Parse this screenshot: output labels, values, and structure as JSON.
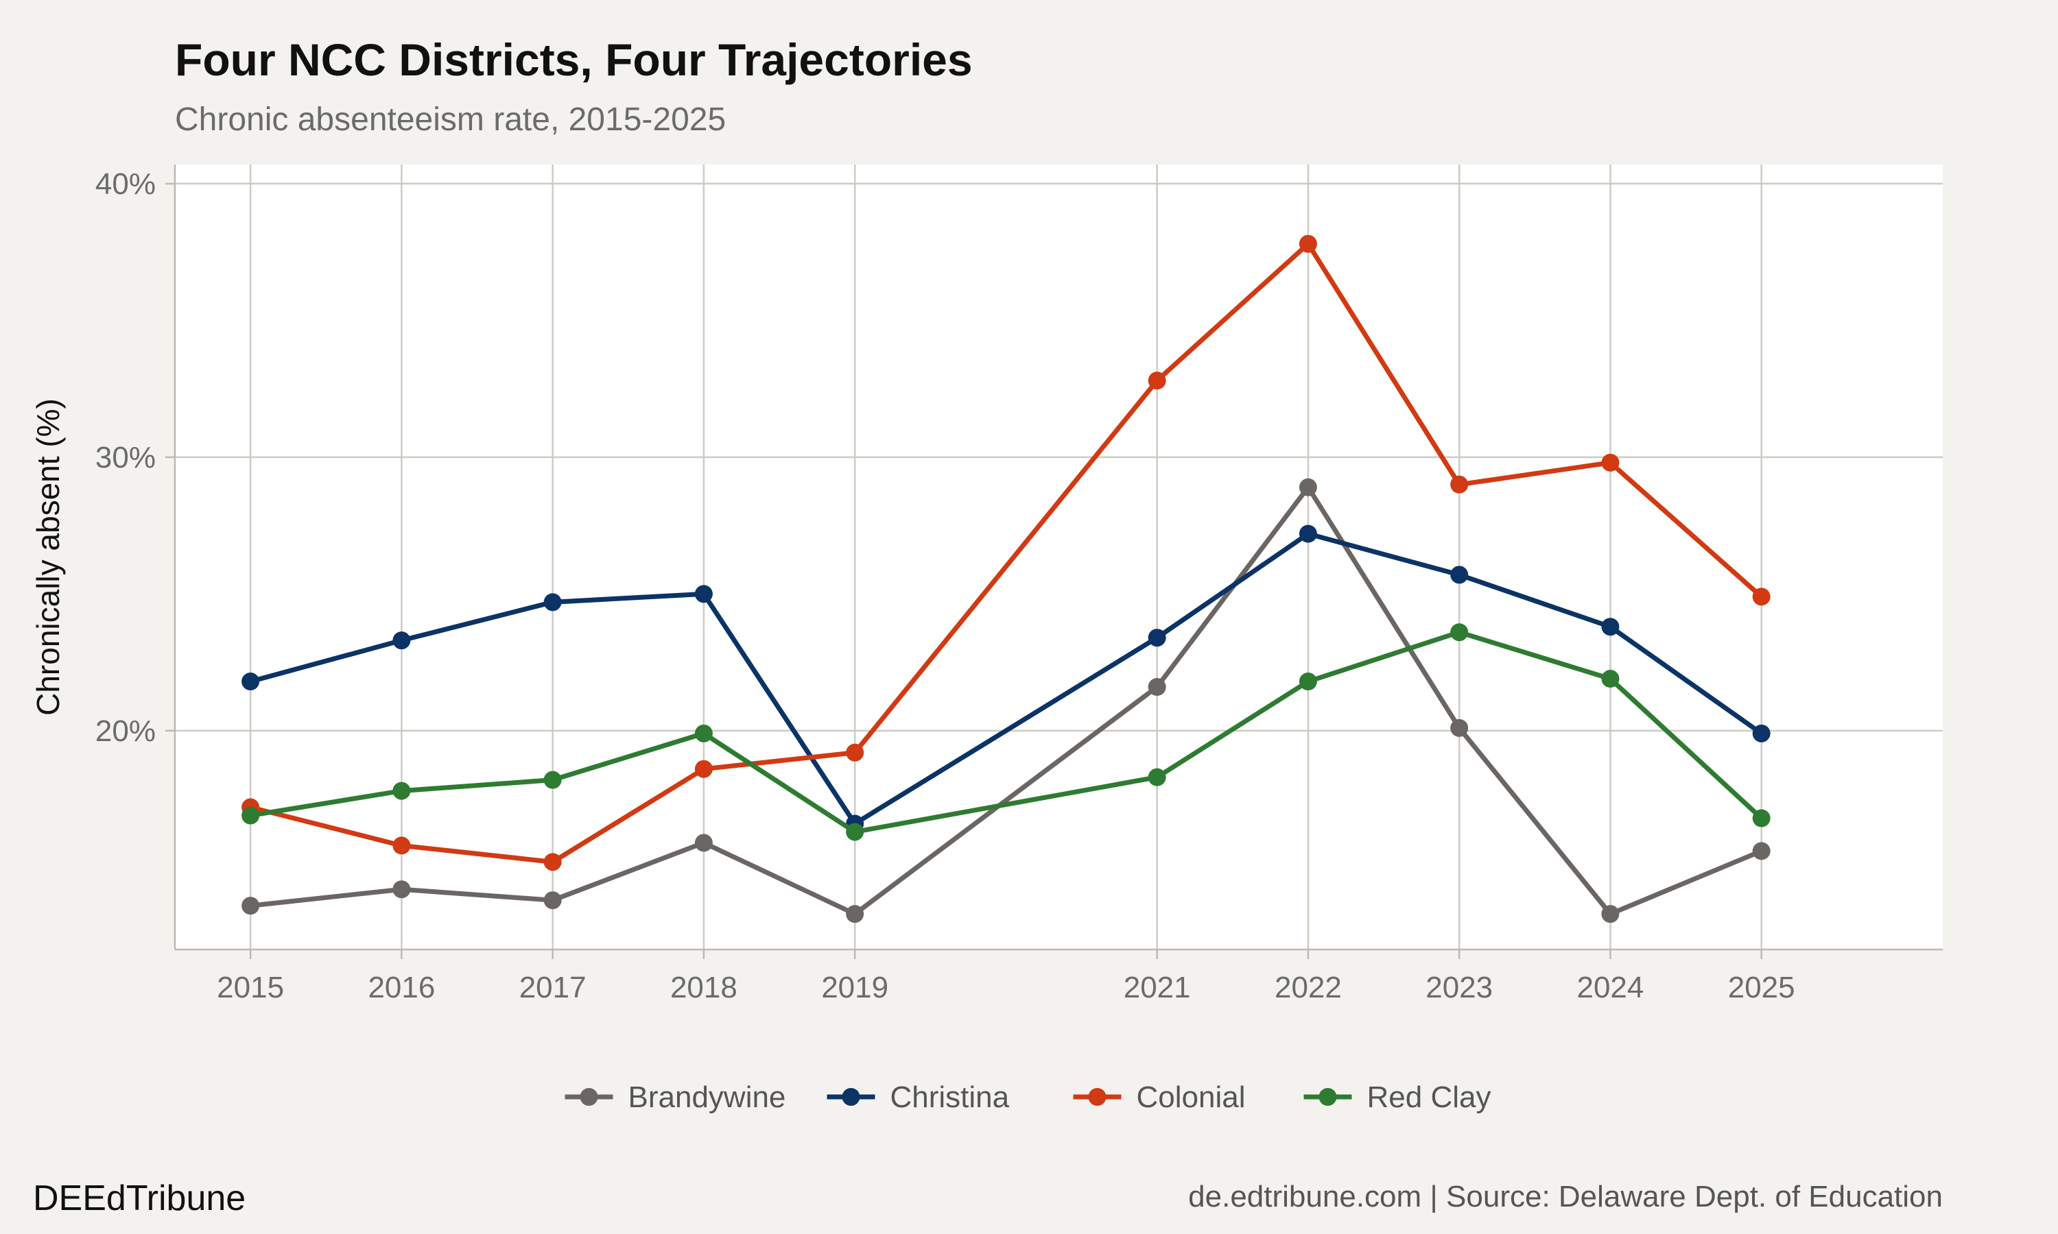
{
  "chart_data": {
    "type": "line",
    "title": "Four NCC Districts, Four Trajectories",
    "subtitle": "Chronic absenteeism rate, 2015-2025",
    "xlabel": "",
    "ylabel": "Chronically absent (%)",
    "x": [
      2015,
      2016,
      2017,
      2018,
      2019,
      2021,
      2022,
      2023,
      2024,
      2025
    ],
    "x_tick_labels": [
      "2015",
      "2016",
      "2017",
      "2018",
      "2019",
      "2021",
      "2022",
      "2023",
      "2024",
      "2025"
    ],
    "xlim": [
      2014.5,
      2026.2
    ],
    "ylim": [
      12,
      40.7
    ],
    "y_ticks": [
      20,
      30,
      40
    ],
    "y_tick_labels": [
      "20%",
      "30%",
      "40%"
    ],
    "grid": true,
    "legend_position": "bottom",
    "series": [
      {
        "name": "Brandywine",
        "color": "#6b6663",
        "values": [
          13.6,
          14.2,
          13.8,
          15.9,
          13.3,
          21.6,
          28.9,
          20.1,
          13.3,
          15.6
        ]
      },
      {
        "name": "Christina",
        "color": "#0b3366",
        "values": [
          21.8,
          23.3,
          24.7,
          25.0,
          16.6,
          23.4,
          27.2,
          25.7,
          23.8,
          19.9
        ]
      },
      {
        "name": "Colonial",
        "color": "#d13a12",
        "values": [
          17.2,
          15.8,
          15.2,
          18.6,
          19.2,
          32.8,
          37.8,
          29.0,
          29.8,
          24.9
        ]
      },
      {
        "name": "Red Clay",
        "color": "#2e7b32",
        "values": [
          16.9,
          17.8,
          18.2,
          19.9,
          16.3,
          18.3,
          21.8,
          23.6,
          21.9,
          16.8
        ]
      }
    ]
  },
  "footer": {
    "brand": "DEEdTribune",
    "source": "de.edtribune.com | Source: Delaware Dept. of Education"
  }
}
